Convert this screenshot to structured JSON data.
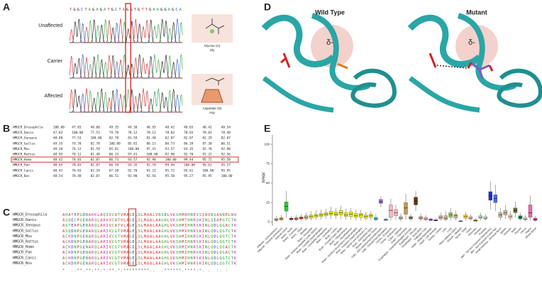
{
  "panel_a": {
    "label": "A",
    "sequence": "TGGCTAGAGATGCTAGGTGTTGAAGGAGCA",
    "rows": [
      "Unaffected",
      "Carrier",
      "Affected"
    ],
    "wild_residue": {
      "name": "Glycine (G)",
      "abbr": "Gly"
    },
    "mutant_residue": {
      "name": "Aspartate (D)",
      "abbr": "Asp"
    }
  },
  "panel_b": {
    "label": "B",
    "table": {
      "rows": [
        {
          "name": "HMGCR_Drosophila",
          "values": [
            "100.00",
            "47.83",
            "48.00",
            "49.35",
            "49.30",
            "48.95",
            "48.42",
            "48.65",
            "48.42",
            "48.54"
          ]
        },
        {
          "name": "HMGCR_Danio",
          "values": [
            "47.83",
            "100.00",
            "77.53",
            "79.78",
            "78.12",
            "78.12",
            "78.03",
            "78.03",
            "78.03",
            "78.48"
          ]
        },
        {
          "name": "HMGCR_Xenopus",
          "values": [
            "48.00",
            "77.53",
            "100.00",
            "82.78",
            "81.59",
            "81.48",
            "82.07",
            "82.07",
            "82.29",
            "82.07"
          ]
        },
        {
          "name": "HMGCR_Gallus",
          "values": [
            "49.35",
            "79.78",
            "82.78",
            "100.00",
            "85.81",
            "86.15",
            "86.73",
            "86.39",
            "87.30",
            "86.51"
          ]
        },
        {
          "name": "HMGCR_Mus",
          "values": [
            "49.30",
            "78.12",
            "81.59",
            "85.81",
            "100.00",
            "97.41",
            "93.57",
            "93.35",
            "92.78",
            "92.90"
          ]
        },
        {
          "name": "HMGCR_Rattus",
          "values": [
            "48.95",
            "78.12",
            "81.48",
            "86.15",
            "97.41",
            "100.00",
            "92.90",
            "92.78",
            "91.22",
            "92.56"
          ]
        },
        {
          "name": "HMGCR_Homo",
          "values": [
            "48.42",
            "78.03",
            "82.07",
            "86.73",
            "93.57",
            "92.90",
            "100.00",
            "99.44",
            "95.72",
            "95.58"
          ]
        },
        {
          "name": "HMGCR_Pan",
          "values": [
            "48.65",
            "78.03",
            "82.07",
            "86.39",
            "93.35",
            "92.78",
            "99.44",
            "100.00",
            "95.61",
            "95.27"
          ]
        },
        {
          "name": "HMGCR_Canis",
          "values": [
            "48.42",
            "78.03",
            "82.29",
            "87.30",
            "92.78",
            "91.22",
            "95.72",
            "95.61",
            "100.00",
            "95.95"
          ]
        },
        {
          "name": "HMGCR_Bos",
          "values": [
            "48.54",
            "78.48",
            "82.07",
            "86.51",
            "92.90",
            "92.56",
            "95.58",
            "95.27",
            "95.95",
            "100.00"
          ]
        }
      ]
    }
  },
  "panel_c": {
    "label": "C",
    "alignment": [
      {
        "name": "HMGCR_Drosophila",
        "sequence": "AHATRPGDNAKKLAQIVCATVMAGELSLMAALVNSDLVKSHMRHNRSSIAVNSANNPLNV"
      },
      {
        "name": "HMGCR_Danio",
        "sequence": "ASQECPGENARQLARVVCATVLAGELSLMAALAAGHLVKSHMTHNRSKINLQEAPGTCTK"
      },
      {
        "name": "HMGCR_Xenopus",
        "sequence": "ASTEAPGENARQLAKIVCATVLAGELSLMAALAAGHLVKSHMIHNRSKINLQDLQGACTK"
      },
      {
        "name": "HMGCR_Gallus",
        "sequence": "ASQDNPGENARQLARIVCGTVMAGELSLMAALAAGHLVKSHMVHNRSKINLQDLQGTCTK"
      },
      {
        "name": "HMGCR_Mus",
        "sequence": "ACKDNPGENARQLARIVCGTVMAGELSLMAALAAGHLVKSHMIHNRSKINLQDLQGTCTK"
      },
      {
        "name": "HMGCR_Rattus",
        "sequence": "ACKDNPGENARQLARIVCGTVMAGELSLMAALAAGHLVKSHMIHNRSKINLQDLQGTCTK"
      },
      {
        "name": "HMGCR_Homo",
        "sequence": "ACKDNPGENARQLARIVCGTVMAGELSLMAALAAGHLVKSHMIHNRSKINLQDLQGACTK"
      },
      {
        "name": "HMGCR_Pan",
        "sequence": "ACKDNPGENARQLARIVCGTVMAGELSLMAALAAGHLVKSHMIHNRSKINLQDLQGACTK"
      },
      {
        "name": "HMGCR_Canis",
        "sequence": "ACKDNPGENARQLARIVCGTVMAGELSLMAALAAGHLVKSHMIHNRSKINLQDLQGTCTK"
      },
      {
        "name": "HMGCR_Bos",
        "sequence": "ACKDNPGENARQLARIVCGTVMAGELSLMAALAAGHLVKSHMIHNRSKINLQDLQGTCTK"
      }
    ],
    "consensus": "*  ..**.**:**:*:**.*:*********..  .******.****:*. .  :. :"
  },
  "panel_d": {
    "label": "D",
    "wild_type": {
      "title": "Wild Type",
      "charge": "δ-"
    },
    "mutant": {
      "title": "Mutant",
      "charge": "δ-"
    }
  },
  "chart_data": {
    "type": "box",
    "panel_label": "E",
    "y_label": "RPKM",
    "categories": [
      "Adipose - Subcutaneous",
      "Adipose - Visceral (Omentum)",
      "Adrenal Gland",
      "Artery - Aorta",
      "Artery - Coronary",
      "Artery - Tibial",
      "Bladder",
      "Brain - Amygdala",
      "Brain - Anterior cingulate cortex (BA24)",
      "Brain - Caudate (basal ganglia)",
      "Brain - Cerebellar Hemisphere",
      "Brain - Cerebellum",
      "Brain - Cortex",
      "Brain - Frontal Cortex (BA9)",
      "Brain - Hippocampus",
      "Brain - Hypothalamus",
      "Brain - Nucleus accumbens (basal ganglia)",
      "Brain - Putamen (basal ganglia)",
      "Brain - Spinal cord (cervical c-1)",
      "Brain - Substantia nigra",
      "Breast - Mammary Tissue",
      "Cells - EBV-transformed lymphocytes",
      "Cells - Transformed fibroblasts",
      "Cervix - Ectocervix",
      "Cervix - Endocervix",
      "Colon - Sigmoid",
      "Colon - Transverse",
      "Esophagus - Gastroesophageal Junction",
      "Esophagus - Mucosa",
      "Esophagus - Muscularis",
      "Fallopian Tube",
      "Heart - Atrial Appendage",
      "Heart - Left Ventricle",
      "Kidney - Cortex",
      "Liver",
      "Lung",
      "Minor Salivary Gland",
      "Muscle - Skeletal",
      "Nerve - Tibial",
      "Ovary",
      "Pancreas",
      "Pituitary",
      "Prostate",
      "Skin - Not Sun Exposed (Suprapubic)",
      "Skin - Sun Exposed (Lower leg)",
      "Small Intestine - Terminal Ileum",
      "Spleen",
      "Stomach",
      "Testis",
      "Thyroid",
      "Uterus",
      "Vagina",
      "Whole Blood"
    ],
    "whisker_low": [
      0.5,
      1,
      5,
      1,
      1,
      1.5,
      2,
      2,
      3,
      3,
      4,
      4,
      4,
      4,
      3,
      3,
      2,
      2,
      2,
      2,
      1,
      19,
      1,
      2,
      3,
      1,
      3,
      1,
      14,
      1,
      1,
      1,
      0.5,
      2,
      1,
      2,
      2,
      0,
      2,
      2,
      0.5,
      2,
      2,
      16,
      14,
      2,
      4,
      2,
      6,
      2,
      1,
      2,
      0.5
    ],
    "q1": [
      2,
      3,
      14,
      3,
      3,
      4,
      4,
      5,
      6,
      7,
      8,
      9,
      8,
      9,
      7,
      7,
      6,
      6,
      5,
      6,
      3,
      24,
      2,
      6,
      8,
      4,
      10,
      4,
      22,
      4,
      3,
      2,
      1.5,
      4,
      3,
      6,
      5,
      0.5,
      5,
      4,
      1,
      5,
      4,
      28,
      25,
      6,
      9,
      5,
      12,
      4,
      3,
      6,
      2
    ],
    "medians": [
      3,
      4,
      20,
      4,
      4,
      5,
      6,
      7,
      8,
      9,
      10,
      11,
      10,
      12,
      9,
      10,
      8,
      9,
      7,
      8,
      4,
      26,
      3,
      15,
      12,
      5,
      18,
      5,
      27,
      5,
      4,
      3,
      2,
      6,
      5,
      9,
      8,
      1,
      7,
      5,
      2,
      6,
      5,
      34,
      30,
      9,
      12,
      7,
      15,
      6,
      4,
      12,
      3
    ],
    "q3": [
      4.5,
      5.5,
      26,
      5,
      5.5,
      6.5,
      8,
      9,
      10,
      11,
      12,
      14,
      13,
      15,
      12,
      13,
      11,
      11,
      9,
      10,
      6,
      29,
      4,
      22,
      16,
      7,
      25,
      7,
      32,
      7,
      6,
      4,
      3,
      8,
      8,
      12,
      10,
      1.5,
      9,
      7,
      3,
      8,
      7,
      39,
      35,
      12,
      15,
      9,
      18,
      8,
      6,
      22,
      5
    ],
    "whisker_high": [
      8,
      9,
      40,
      8,
      9,
      10,
      12,
      14,
      15,
      16,
      17,
      20,
      18,
      21,
      17,
      18,
      16,
      16,
      13,
      14,
      10,
      33,
      6,
      30,
      22,
      11,
      36,
      10,
      40,
      11,
      9,
      6,
      5,
      12,
      14,
      18,
      15,
      3,
      13,
      10,
      5,
      12,
      10,
      52,
      48,
      18,
      22,
      14,
      26,
      12,
      9,
      34,
      8
    ],
    "colors": [
      "#f5a25a",
      "#e8961a",
      "#33cc33",
      "#8b1c62",
      "#ee6a50",
      "#ff3030",
      "#cdb79e",
      "#eeee00",
      "#eeee00",
      "#eeee00",
      "#eeee00",
      "#eeee00",
      "#eeee00",
      "#eeee00",
      "#eeee00",
      "#eeee00",
      "#eeee00",
      "#eeee00",
      "#eeee00",
      "#eeee00",
      "#33cccc",
      "#9966cc",
      "#9ac0cd",
      "#ffb6c1",
      "#ffb6c1",
      "#cdb79e",
      "#c49a5a",
      "#8b7355",
      "#5a3a1a",
      "#cdaa7d",
      "#ffb6c1",
      "#b23aee",
      "#7a378b",
      "#cdb79e",
      "#cdb79e",
      "#9acd32",
      "#cdb79e",
      "#7a67ee",
      "#ffd700",
      "#ffb6c1",
      "#cd9b1d",
      "#b4eeb4",
      "#d9d9d9",
      "#1a2fe0",
      "#4a6ae8",
      "#cdb79e",
      "#cdb79e",
      "#ffd39b",
      "#666633",
      "#008b45",
      "#eed5d2",
      "#ee6aa7",
      "#cc33cc"
    ],
    "ylim": [
      -5,
      112
    ],
    "yticks": [
      0,
      25,
      50,
      75,
      100
    ]
  }
}
